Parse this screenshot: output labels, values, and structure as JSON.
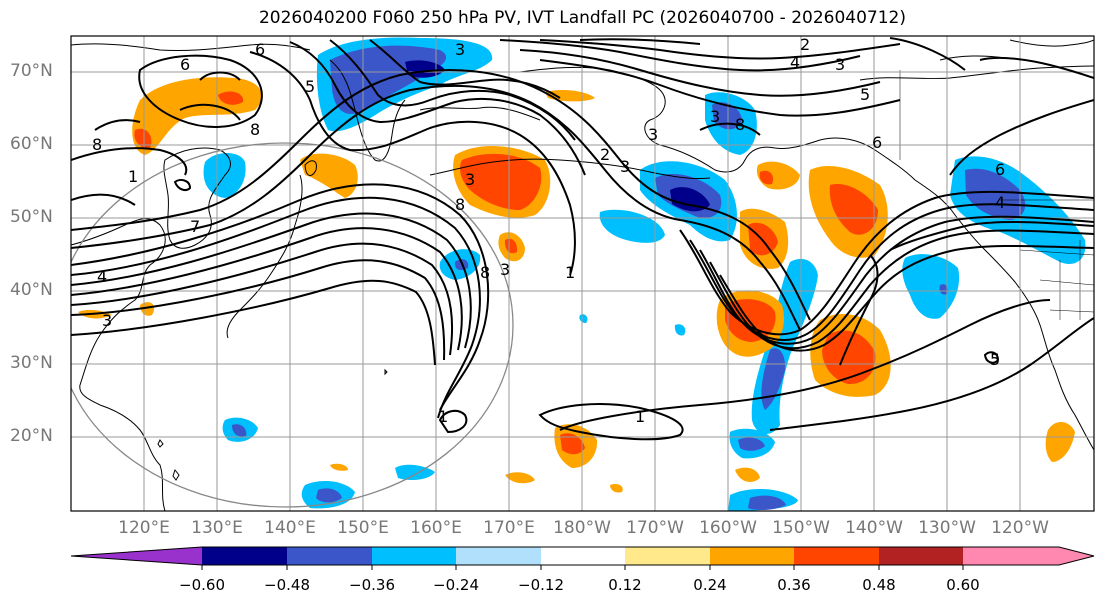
{
  "title": "2026040200 F060 250 hPa PV, IVT Landfall PC (2026040700 - 2026040712)",
  "lat_labels": [
    "70°N",
    "60°N",
    "50°N",
    "40°N",
    "30°N",
    "20°N"
  ],
  "lon_labels": [
    "120°E",
    "130°E",
    "140°E",
    "150°E",
    "160°E",
    "170°E",
    "180°W",
    "170°W",
    "160°W",
    "150°W",
    "140°W",
    "130°W",
    "120°W"
  ],
  "colorbar": {
    "ticks": [
      "−0.60",
      "−0.48",
      "−0.36",
      "−0.24",
      "−0.12",
      "0.12",
      "0.24",
      "0.36",
      "0.48",
      "0.60"
    ],
    "colors": [
      "#9932cc",
      "#00008b",
      "#3a56c9",
      "#00bfff",
      "#b0e0fb",
      "#ffffff",
      "#ffe98a",
      "#ffa500",
      "#ff4500",
      "#b22222",
      "#ff88b0"
    ]
  },
  "contour_labels": [
    "6",
    "5",
    "8",
    "8",
    "3",
    "4",
    "3",
    "1",
    "7",
    "6",
    "8",
    "3",
    "2",
    "3",
    "1",
    "3",
    "3",
    "8",
    "8",
    "3",
    "2",
    "4",
    "3",
    "5",
    "6",
    "6",
    "4",
    "1",
    "1",
    "5"
  ]
}
